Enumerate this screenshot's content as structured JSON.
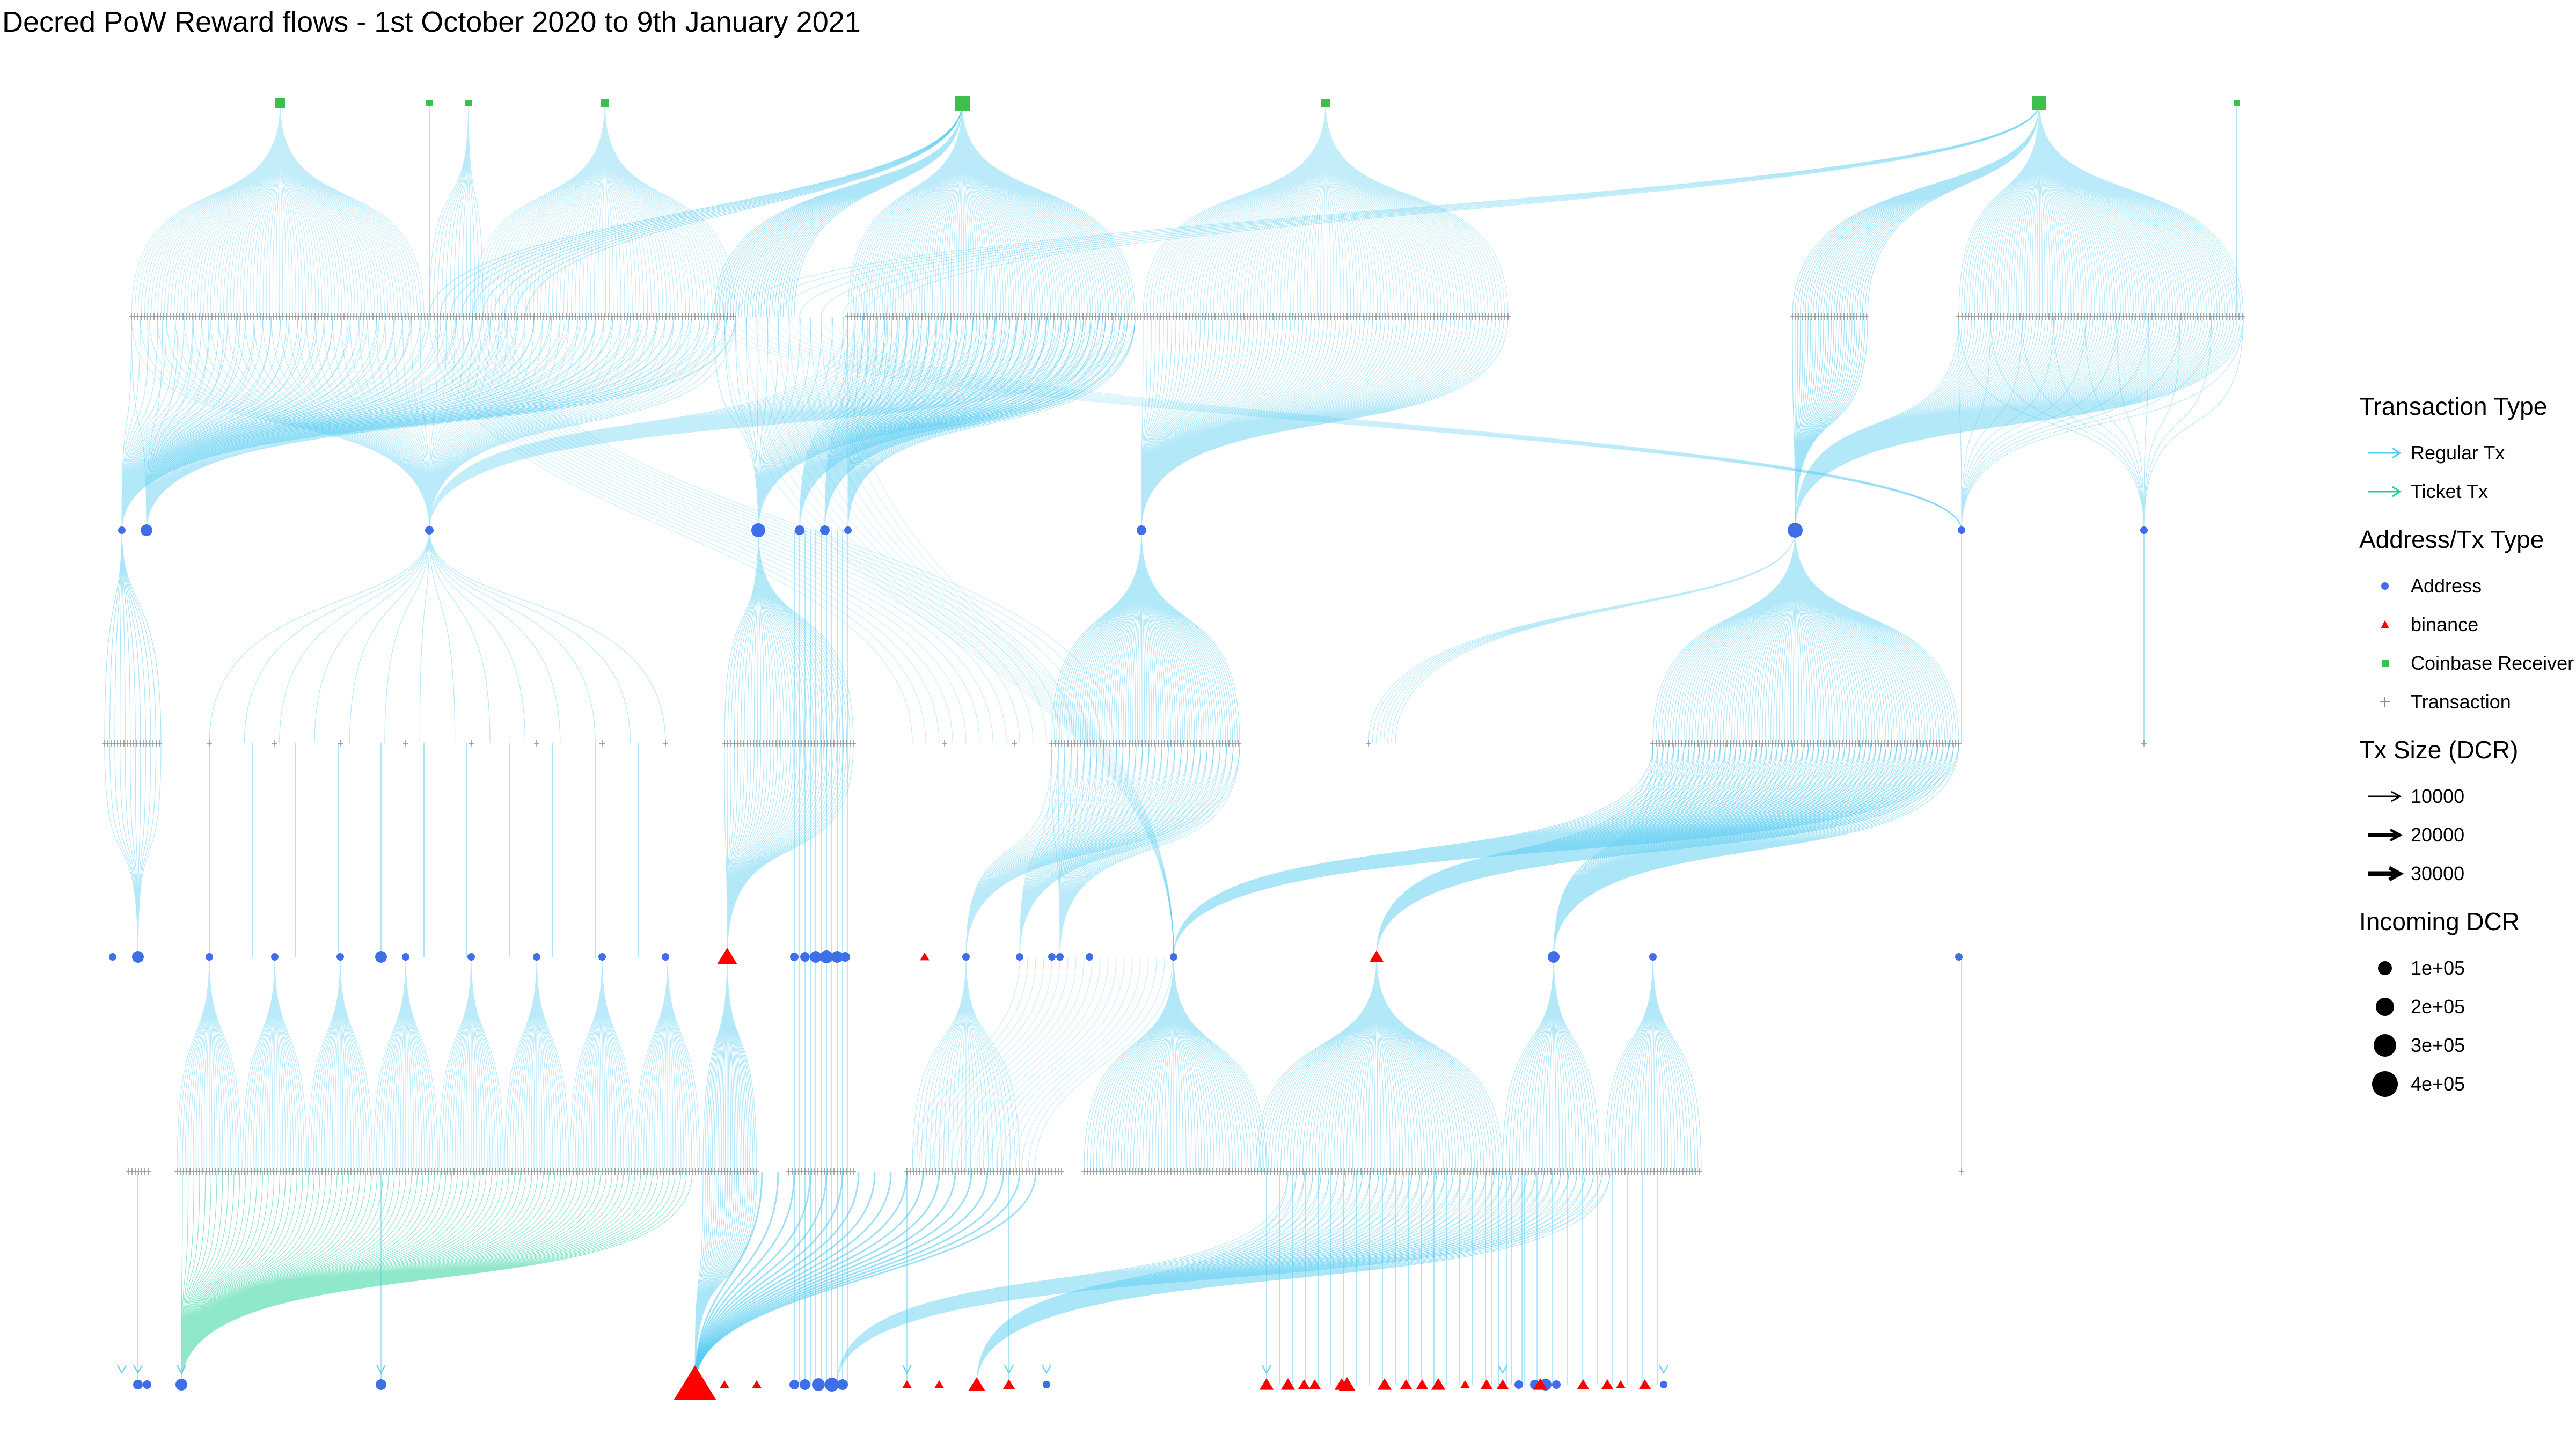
{
  "title": "Decred PoW Reward flows - 1st October 2020 to 9th January 2021",
  "colors": {
    "regular_tx": "#56ccf2",
    "ticket_tx": "#1fd09a",
    "address": "#3f6fe8",
    "binance": "#ff0000",
    "coinbase": "#3cbf4b",
    "transaction": "#8a8a8a"
  },
  "legend": {
    "transaction_type": {
      "title": "Transaction Type",
      "items": [
        {
          "label": "Regular Tx",
          "key": "regular"
        },
        {
          "label": "Ticket Tx",
          "key": "ticket"
        }
      ]
    },
    "node_type": {
      "title": "Address/Tx Type",
      "items": [
        {
          "label": "Address",
          "shape": "circle"
        },
        {
          "label": "binance",
          "shape": "triangle"
        },
        {
          "label": "Coinbase Receiver",
          "shape": "square"
        },
        {
          "label": "Transaction",
          "shape": "plus"
        }
      ]
    },
    "tx_size": {
      "title": "Tx Size (DCR)",
      "items": [
        {
          "label": "10000",
          "value": 10000
        },
        {
          "label": "20000",
          "value": 20000
        },
        {
          "label": "30000",
          "value": 30000
        }
      ]
    },
    "incoming": {
      "title": "Incoming DCR",
      "items": [
        {
          "label": "1e+05",
          "value": 100000
        },
        {
          "label": "2e+05",
          "value": 200000
        },
        {
          "label": "3e+05",
          "value": 300000
        },
        {
          "label": "4e+05",
          "value": 400000
        }
      ]
    }
  }
}
